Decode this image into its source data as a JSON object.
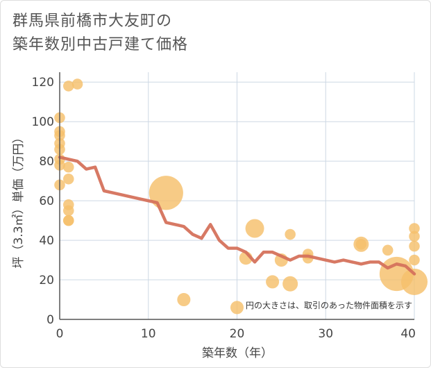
{
  "title_lines": [
    "群馬県前橋市大友町の",
    "築年数別中古戸建て価格"
  ],
  "chart_data": {
    "type": "scatter",
    "title": "群馬県前橋市大友町の築年数別中古戸建て価格",
    "xlabel": "築年数（年）",
    "ylabel": "坪（3.3㎡）単価（万円）",
    "xlim": [
      0,
      40
    ],
    "ylim": [
      0,
      125
    ],
    "x_ticks": [
      0,
      10,
      20,
      30,
      40
    ],
    "y_ticks": [
      0,
      20,
      40,
      60,
      80,
      100,
      120
    ],
    "grid": true,
    "note": "円の大きさは、取引のあった物件面積を示す",
    "colors": {
      "bubble": "#f5c06b",
      "line": "#d5725c",
      "grid": "#cdd8e4",
      "axis": "#555555"
    },
    "bubbles": [
      {
        "x": 0,
        "y": 102,
        "size": 2
      },
      {
        "x": 0,
        "y": 95,
        "size": 2
      },
      {
        "x": 0,
        "y": 93,
        "size": 2
      },
      {
        "x": 0,
        "y": 89,
        "size": 2
      },
      {
        "x": 0,
        "y": 86,
        "size": 2
      },
      {
        "x": 0,
        "y": 81,
        "size": 2
      },
      {
        "x": 0,
        "y": 78,
        "size": 2
      },
      {
        "x": 0,
        "y": 68,
        "size": 2
      },
      {
        "x": 1,
        "y": 118,
        "size": 2
      },
      {
        "x": 2,
        "y": 119,
        "size": 2
      },
      {
        "x": 1,
        "y": 77,
        "size": 2
      },
      {
        "x": 1,
        "y": 71,
        "size": 2
      },
      {
        "x": 1,
        "y": 58,
        "size": 2
      },
      {
        "x": 1,
        "y": 55,
        "size": 2
      },
      {
        "x": 1,
        "y": 50,
        "size": 2
      },
      {
        "x": 1,
        "y": 50,
        "size": 2
      },
      {
        "x": 12,
        "y": 64,
        "size": 20
      },
      {
        "x": 14,
        "y": 10,
        "size": 3
      },
      {
        "x": 20,
        "y": 6,
        "size": 3
      },
      {
        "x": 21,
        "y": 31,
        "size": 3
      },
      {
        "x": 22,
        "y": 46,
        "size": 6
      },
      {
        "x": 24,
        "y": 19,
        "size": 3
      },
      {
        "x": 25,
        "y": 30,
        "size": 3
      },
      {
        "x": 26,
        "y": 43,
        "size": 2
      },
      {
        "x": 26,
        "y": 18,
        "size": 4
      },
      {
        "x": 28,
        "y": 33,
        "size": 2
      },
      {
        "x": 28,
        "y": 31,
        "size": 2
      },
      {
        "x": 34,
        "y": 38,
        "size": 4
      },
      {
        "x": 34,
        "y": 38,
        "size": 2
      },
      {
        "x": 37,
        "y": 35,
        "size": 2
      },
      {
        "x": 38,
        "y": 23,
        "size": 20
      },
      {
        "x": 40,
        "y": 46,
        "size": 2
      },
      {
        "x": 40,
        "y": 42,
        "size": 2
      },
      {
        "x": 40,
        "y": 37,
        "size": 2
      },
      {
        "x": 40,
        "y": 30,
        "size": 2
      },
      {
        "x": 40,
        "y": 19,
        "size": 12
      }
    ],
    "trend": {
      "x": [
        0,
        1,
        2,
        3,
        4,
        5,
        6,
        7,
        8,
        9,
        10,
        11,
        12,
        13,
        14,
        15,
        16,
        17,
        18,
        19,
        20,
        21,
        22,
        23,
        24,
        25,
        26,
        27,
        28,
        29,
        30,
        31,
        32,
        33,
        34,
        35,
        36,
        37,
        38,
        39,
        40
      ],
      "y": [
        82,
        81,
        80,
        76,
        77,
        65,
        64,
        63,
        62,
        61,
        60,
        59,
        49,
        48,
        47,
        43,
        41,
        48,
        40,
        36,
        36,
        34,
        29,
        34,
        34,
        32,
        30,
        32,
        32,
        31,
        30,
        29,
        30,
        29,
        28,
        29,
        29,
        26,
        28,
        27,
        23
      ]
    }
  }
}
